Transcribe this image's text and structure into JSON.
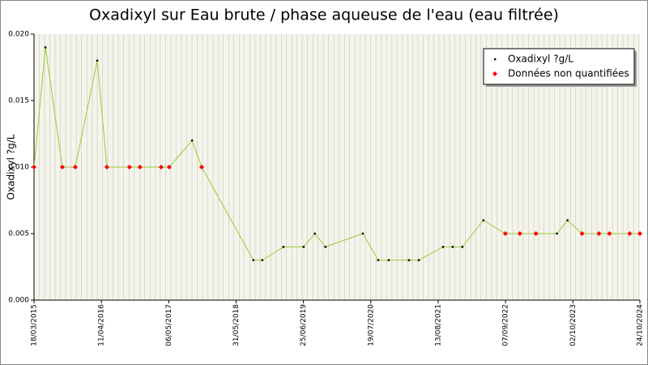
{
  "chart_data": {
    "type": "line",
    "title": "Oxadixyl sur Eau brute / phase aqueuse de l'eau (eau filtrée)",
    "y_label": "Oxadixyl ?g/L",
    "x": [
      "18/03/2015",
      "23/05/2015",
      "29/08/2015",
      "12/11/2015",
      "18/03/2016",
      "13/05/2016",
      "21/09/2016",
      "21/11/2016",
      "23/03/2017",
      "09/05/2017",
      "18/09/2017",
      "13/11/2017",
      "08/09/2018",
      "30/10/2018",
      "01/03/2019",
      "26/06/2019",
      "30/08/2019",
      "30/10/2019",
      "03/06/2020",
      "31/08/2020",
      "31/10/2020",
      "25/02/2021",
      "23/04/2021",
      "10/09/2021",
      "05/11/2021",
      "31/12/2021",
      "02/05/2022",
      "06/09/2022",
      "29/11/2022",
      "02/03/2023",
      "02/07/2023",
      "01/09/2023",
      "24/11/2023",
      "01/03/2024",
      "01/05/2024",
      "26/08/2024",
      "24/10/2024"
    ],
    "series": [
      {
        "name": "Oxadixyl ?g/L",
        "color": "#99cc33",
        "marker_color": "#000000",
        "values": [
          0.01,
          0.019,
          0.01,
          0.01,
          0.018,
          0.01,
          0.01,
          0.01,
          0.01,
          0.01,
          0.012,
          0.01,
          0.003,
          0.003,
          0.004,
          0.004,
          0.005,
          0.004,
          0.005,
          0.003,
          0.003,
          0.003,
          0.003,
          0.004,
          0.004,
          0.004,
          0.006,
          0.005,
          0.005,
          0.005,
          0.005,
          0.006,
          0.005,
          0.005,
          0.005,
          0.005,
          0.005
        ]
      },
      {
        "name": "Données non quantifiées",
        "color": "#ff0000",
        "values": [
          0.01,
          null,
          0.01,
          0.01,
          null,
          0.01,
          0.01,
          0.01,
          0.01,
          0.01,
          null,
          0.01,
          null,
          null,
          null,
          null,
          null,
          null,
          null,
          null,
          null,
          null,
          null,
          null,
          null,
          null,
          null,
          0.005,
          0.005,
          0.005,
          null,
          null,
          0.005,
          0.005,
          0.005,
          0.005,
          0.005
        ]
      }
    ],
    "xlim": [
      "18/03/2015",
      "24/10/2024"
    ],
    "xticks": [
      "18/03/2015",
      "11/04/2016",
      "06/05/2017",
      "31/05/2018",
      "25/06/2019",
      "19/07/2020",
      "13/08/2021",
      "07/09/2022",
      "02/10/2023",
      "24/10/2024"
    ],
    "ylim": [
      0,
      0.02
    ],
    "yticks": [
      {
        "value": 0,
        "label": "0.000"
      },
      {
        "value": 0.005,
        "label": "0.005"
      },
      {
        "value": 0.01,
        "label": "0.010"
      },
      {
        "value": 0.015,
        "label": "0.015"
      },
      {
        "value": 0.02,
        "label": "0.020"
      }
    ],
    "legend": "top-right"
  }
}
